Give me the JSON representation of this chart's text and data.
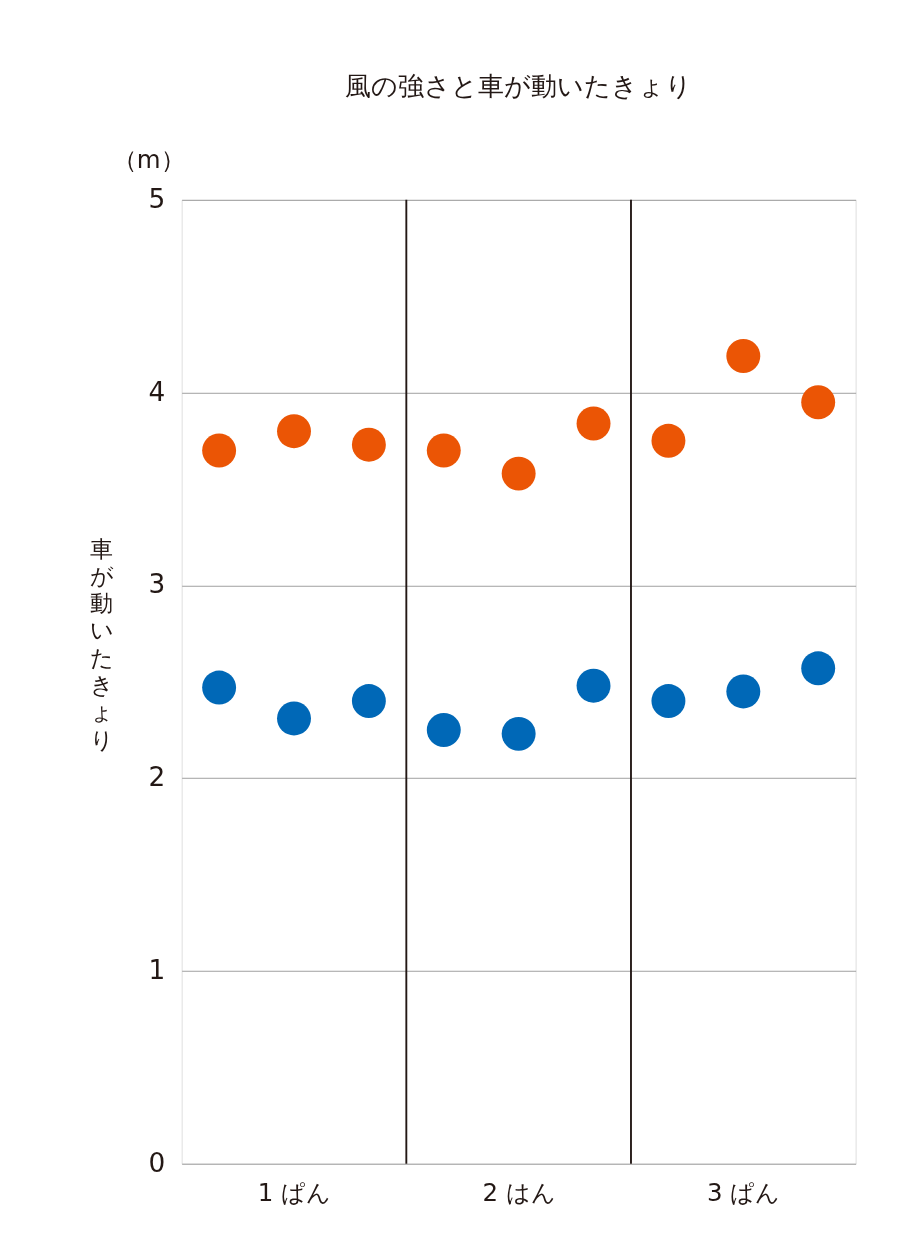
{
  "chart_data": {
    "type": "scatter",
    "title": "風の強さと車が動いたきょり",
    "ylabel": "車が動いたきょり",
    "annotations": [
      "（m）"
    ],
    "categories": [
      null,
      "1 ぱん",
      null,
      null,
      "2 はん",
      null,
      null,
      "3 ぱん",
      null
    ],
    "series": [
      {
        "color": "#eb5505",
        "values": [
          3.7,
          3.8,
          3.73,
          3.7,
          3.58,
          3.84,
          3.75,
          4.19,
          3.95
        ]
      },
      {
        "color": "#0068b7",
        "values": [
          2.47,
          2.31,
          2.4,
          2.25,
          2.23,
          2.48,
          2.4,
          2.45,
          2.57
        ]
      }
    ],
    "ylim": [
      0,
      5
    ],
    "yticks": [
      0,
      1,
      2,
      3,
      4,
      5
    ],
    "grid": "y",
    "marker": "circle",
    "legend": false
  }
}
